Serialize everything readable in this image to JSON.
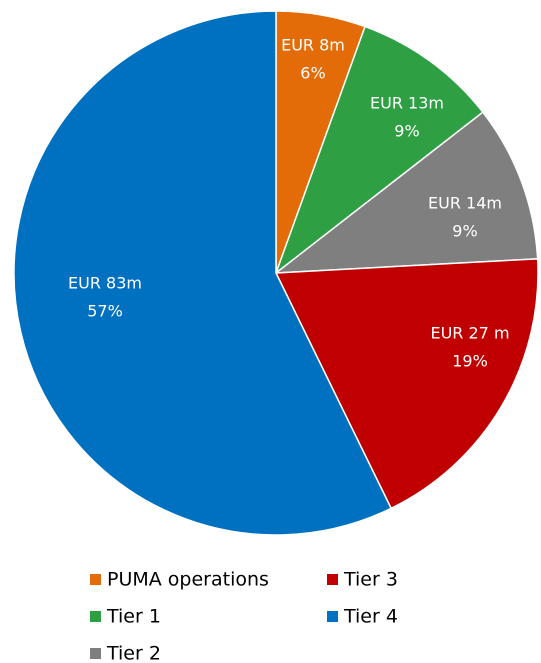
{
  "chart_data": {
    "type": "pie",
    "categories": [
      "PUMA operations",
      "Tier 1",
      "Tier 2",
      "Tier 3",
      "Tier 4"
    ],
    "values": [
      8,
      13,
      14,
      27,
      83
    ],
    "value_labels": [
      "EUR 8m",
      "EUR 13m",
      "EUR 14m",
      "EUR 27 m",
      "EUR 83m"
    ],
    "percent_labels": [
      "6%",
      "9%",
      "9%",
      "19%",
      "57%"
    ],
    "colors": [
      "#e36c09",
      "#2ea043",
      "#7f7f7f",
      "#c00000",
      "#0070c0"
    ],
    "legend": "bottom"
  }
}
